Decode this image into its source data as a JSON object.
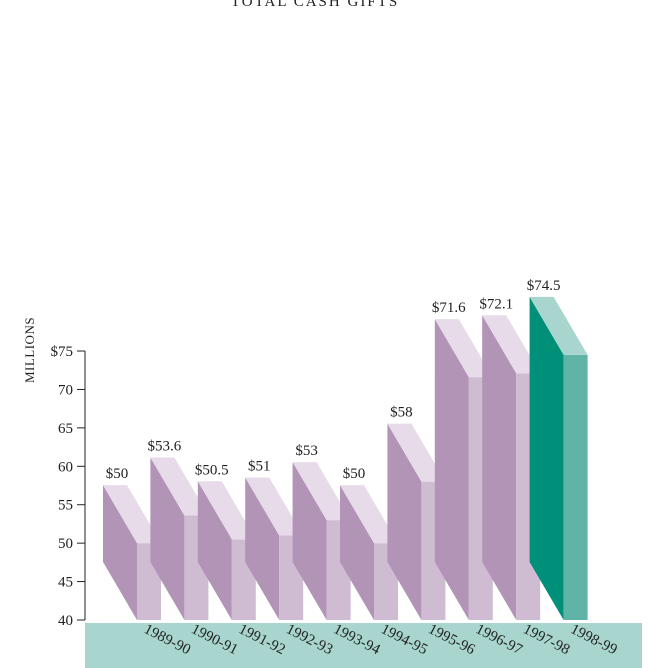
{
  "chart_data": {
    "type": "bar",
    "title": "TOTAL CASH GIFTS",
    "ylabel": "MILLIONS",
    "xlabel": "",
    "ylim": [
      40,
      75
    ],
    "y_ticks": [
      {
        "value": 75,
        "label": "$75"
      },
      {
        "value": 70,
        "label": "70"
      },
      {
        "value": 65,
        "label": "65"
      },
      {
        "value": 60,
        "label": "60"
      },
      {
        "value": 55,
        "label": "55"
      },
      {
        "value": 50,
        "label": "50"
      },
      {
        "value": 45,
        "label": "45"
      },
      {
        "value": 40,
        "label": "40"
      }
    ],
    "categories": [
      "1989-90",
      "1990-91",
      "1991-92",
      "1992-93",
      "1993-94",
      "1994-95",
      "1995-96",
      "1996-97",
      "1997-98",
      "1998-99"
    ],
    "values": [
      50,
      53.6,
      50.5,
      51,
      53,
      50,
      58,
      71.6,
      72.1,
      74.5
    ],
    "data_labels": [
      "$50",
      "$53.6",
      "$50.5",
      "$51",
      "$53",
      "$50",
      "$58",
      "$71.6",
      "$72.1",
      "$74.5"
    ],
    "highlight_index": 9,
    "colors": {
      "side": "#b194b6",
      "front": "#cfbcd3",
      "top": "#e7dbe9",
      "highlight_side": "#00907a",
      "highlight_front": "#5fb3a7",
      "highlight_top": "#a8d6cf",
      "base": "#a8d6cf",
      "axis": "#222222"
    }
  }
}
